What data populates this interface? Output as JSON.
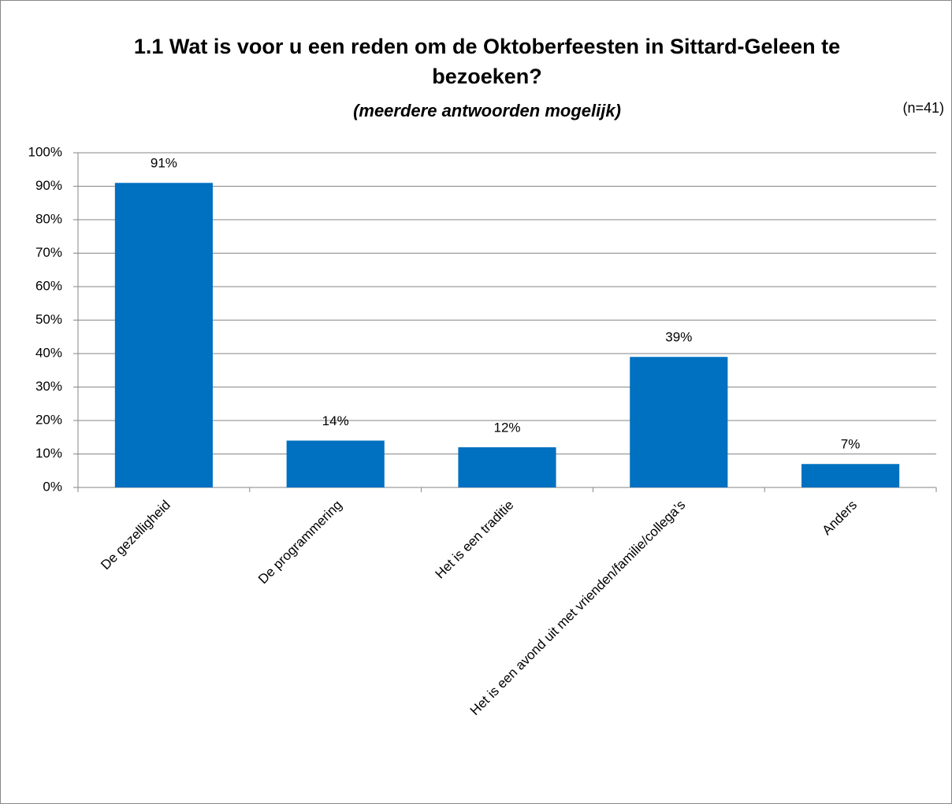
{
  "chart_data": {
    "type": "bar",
    "title": "1.1 Wat is voor u een reden om de Oktoberfeesten in Sittard-Geleen te bezoeken?",
    "subtitle": "(meerdere antwoorden mogelijk)",
    "annotation": "(n=41)",
    "categories": [
      "De gezelligheid",
      "De programmering",
      "Het is een traditie",
      "Het is een avond uit met vrienden/familie/collega’s",
      "Anders"
    ],
    "values": [
      91,
      14,
      12,
      39,
      7
    ],
    "value_labels": [
      "91%",
      "14%",
      "12%",
      "39%",
      "7%"
    ],
    "color": "#0070c0",
    "ylim": [
      0,
      100
    ],
    "yticks": [
      {
        "value": 0,
        "label": "0%"
      },
      {
        "value": 10,
        "label": "10%"
      },
      {
        "value": 20,
        "label": "20%"
      },
      {
        "value": 30,
        "label": "30%"
      },
      {
        "value": 40,
        "label": "40%"
      },
      {
        "value": 50,
        "label": "50%"
      },
      {
        "value": 60,
        "label": "60%"
      },
      {
        "value": 70,
        "label": "70%"
      },
      {
        "value": 80,
        "label": "80%"
      },
      {
        "value": 90,
        "label": "90%"
      },
      {
        "value": 100,
        "label": "100%"
      }
    ],
    "grid": true
  }
}
